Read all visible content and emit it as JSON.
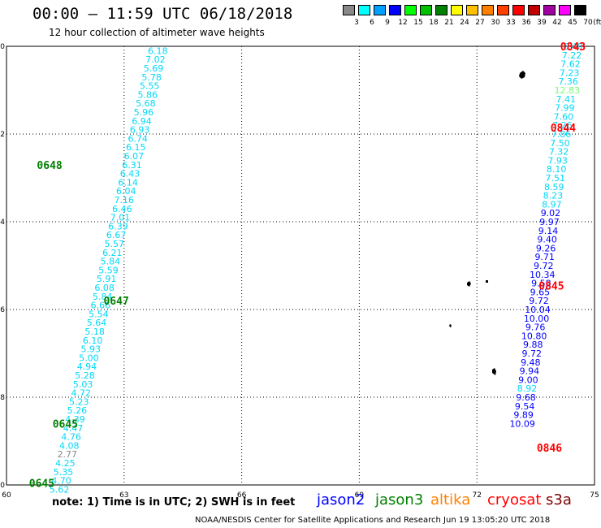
{
  "header": {
    "title": "00:00 — 11:59 UTC 06/18/2018",
    "subtitle": "12 hour collection of altimeter wave heights"
  },
  "color_scale": {
    "unit_label": "(ft)",
    "labels": [
      "3",
      "6",
      "9",
      "12",
      "15",
      "18",
      "21",
      "24",
      "27",
      "30",
      "33",
      "36",
      "39",
      "42",
      "45",
      "70"
    ],
    "colors": [
      "#888888",
      "#00ffff",
      "#00a0ff",
      "#0000ff",
      "#00ff00",
      "#00c000",
      "#008000",
      "#ffff00",
      "#ffc000",
      "#ff8000",
      "#ff4000",
      "#ff0000",
      "#c00000",
      "#a000a0",
      "#ff00ff",
      "#000000"
    ]
  },
  "note": "note: 1) Time is in UTC; 2) SWH is in feet",
  "satellites": [
    {
      "name": "jason2",
      "color": "#0000ff"
    },
    {
      "name": "jason3",
      "color": "#008000"
    },
    {
      "name": "altika",
      "color": "#ff8000"
    },
    {
      "name": "cryosat",
      "color": "#ff0000"
    },
    {
      "name": "s3a",
      "color": "#800000"
    }
  ],
  "footer": "NOAA/NESDIS Center for Satellite Applications and Research   Jun 19 13:05:20 UTC 2018",
  "chart_data": {
    "type": "scatter",
    "xlabel": "",
    "ylabel": "",
    "xlim": [
      60,
      75
    ],
    "ylim": [
      -10,
      0
    ],
    "xticks": [
      60,
      63,
      66,
      69,
      72,
      75
    ],
    "yticks": [
      0,
      -2,
      -4,
      -6,
      -8,
      -10
    ],
    "grid": true,
    "time_labels": [
      {
        "text": "0648",
        "x": 61.1,
        "y": -2.7,
        "color": "#008000"
      },
      {
        "text": "0647",
        "x": 62.8,
        "y": -5.8,
        "color": "#008000"
      },
      {
        "text": "0645",
        "x": 61.5,
        "y": -8.6,
        "color": "#008000"
      },
      {
        "text": "0645",
        "x": 60.9,
        "y": -9.95,
        "color": "#008000"
      },
      {
        "text": "0843",
        "x": 74.45,
        "y": 0.0,
        "color": "#ff0000"
      },
      {
        "text": "0844",
        "x": 74.2,
        "y": -1.85,
        "color": "#ff0000"
      },
      {
        "text": "0845",
        "x": 73.9,
        "y": -5.45,
        "color": "#ff0000"
      },
      {
        "text": "0846",
        "x": 73.85,
        "y": -9.15,
        "color": "#ff0000"
      }
    ],
    "series": [
      {
        "name": "jason3",
        "points": [
          {
            "x": 63.86,
            "y": -0.1,
            "v": "6.18",
            "c": "#00d8f8"
          },
          {
            "x": 63.8,
            "y": -0.3,
            "v": "7.02",
            "c": "#00d8f8"
          },
          {
            "x": 63.75,
            "y": -0.5,
            "v": "5.69",
            "c": "#00d8f8"
          },
          {
            "x": 63.7,
            "y": -0.7,
            "v": "5.78",
            "c": "#00d8f8"
          },
          {
            "x": 63.65,
            "y": -0.9,
            "v": "5.55",
            "c": "#00d8f8"
          },
          {
            "x": 63.6,
            "y": -1.1,
            "v": "5.86",
            "c": "#00d8f8"
          },
          {
            "x": 63.55,
            "y": -1.3,
            "v": "5.68",
            "c": "#00d8f8"
          },
          {
            "x": 63.5,
            "y": -1.5,
            "v": "5.96",
            "c": "#00d8f8"
          },
          {
            "x": 63.45,
            "y": -1.7,
            "v": "6.94",
            "c": "#00d8f8"
          },
          {
            "x": 63.4,
            "y": -1.9,
            "v": "6.93",
            "c": "#00d8f8"
          },
          {
            "x": 63.35,
            "y": -2.1,
            "v": "6.74",
            "c": "#00d8f8"
          },
          {
            "x": 63.3,
            "y": -2.3,
            "v": "6.15",
            "c": "#00d8f8"
          },
          {
            "x": 63.25,
            "y": -2.5,
            "v": "6.07",
            "c": "#00d8f8"
          },
          {
            "x": 63.2,
            "y": -2.7,
            "v": "6.31",
            "c": "#00d8f8"
          },
          {
            "x": 63.15,
            "y": -2.9,
            "v": "6.43",
            "c": "#00d8f8"
          },
          {
            "x": 63.1,
            "y": -3.1,
            "v": "6.14",
            "c": "#00d8f8"
          },
          {
            "x": 63.05,
            "y": -3.3,
            "v": "6.04",
            "c": "#00d8f8"
          },
          {
            "x": 63.0,
            "y": -3.5,
            "v": "7.16",
            "c": "#00d8f8"
          },
          {
            "x": 62.95,
            "y": -3.7,
            "v": "6.46",
            "c": "#00d8f8"
          },
          {
            "x": 62.9,
            "y": -3.9,
            "v": "7.01",
            "c": "#00d8f8"
          },
          {
            "x": 62.85,
            "y": -4.1,
            "v": "6.39",
            "c": "#00d8f8"
          },
          {
            "x": 62.8,
            "y": -4.3,
            "v": "6.67",
            "c": "#00d8f8"
          },
          {
            "x": 62.75,
            "y": -4.5,
            "v": "5.57",
            "c": "#00d8f8"
          },
          {
            "x": 62.7,
            "y": -4.7,
            "v": "6.21",
            "c": "#00d8f8"
          },
          {
            "x": 62.65,
            "y": -4.9,
            "v": "5.84",
            "c": "#00d8f8"
          },
          {
            "x": 62.6,
            "y": -5.1,
            "v": "5.59",
            "c": "#00d8f8"
          },
          {
            "x": 62.55,
            "y": -5.3,
            "v": "5.91",
            "c": "#00d8f8"
          },
          {
            "x": 62.5,
            "y": -5.5,
            "v": "6.08",
            "c": "#00d8f8"
          },
          {
            "x": 62.45,
            "y": -5.7,
            "v": "5.84",
            "c": "#00d8f8"
          },
          {
            "x": 62.4,
            "y": -5.9,
            "v": "6.66",
            "c": "#00d8f8"
          },
          {
            "x": 62.35,
            "y": -6.1,
            "v": "5.54",
            "c": "#00d8f8"
          },
          {
            "x": 62.3,
            "y": -6.3,
            "v": "5.64",
            "c": "#00d8f8"
          },
          {
            "x": 62.25,
            "y": -6.5,
            "v": "5.18",
            "c": "#00d8f8"
          },
          {
            "x": 62.2,
            "y": -6.7,
            "v": "6.10",
            "c": "#00d8f8"
          },
          {
            "x": 62.15,
            "y": -6.9,
            "v": "5.93",
            "c": "#00d8f8"
          },
          {
            "x": 62.1,
            "y": -7.1,
            "v": "5.00",
            "c": "#00d8f8"
          },
          {
            "x": 62.05,
            "y": -7.3,
            "v": "4.94",
            "c": "#00d8f8"
          },
          {
            "x": 62.0,
            "y": -7.5,
            "v": "5.28",
            "c": "#00d8f8"
          },
          {
            "x": 61.95,
            "y": -7.7,
            "v": "5.03",
            "c": "#00d8f8"
          },
          {
            "x": 61.9,
            "y": -7.9,
            "v": "4.72",
            "c": "#00d8f8"
          },
          {
            "x": 61.85,
            "y": -8.1,
            "v": "5.23",
            "c": "#00d8f8"
          },
          {
            "x": 61.8,
            "y": -8.3,
            "v": "5.26",
            "c": "#00d8f8"
          },
          {
            "x": 61.75,
            "y": -8.5,
            "v": "4.39",
            "c": "#00d8f8"
          },
          {
            "x": 61.7,
            "y": -8.7,
            "v": "4.47",
            "c": "#00d8f8"
          },
          {
            "x": 61.65,
            "y": -8.9,
            "v": "4.76",
            "c": "#00d8f8"
          },
          {
            "x": 61.6,
            "y": -9.1,
            "v": "4.08",
            "c": "#00d8f8"
          },
          {
            "x": 61.55,
            "y": -9.3,
            "v": "2.77",
            "c": "#888888"
          },
          {
            "x": 61.5,
            "y": -9.5,
            "v": "4.25",
            "c": "#00d8f8"
          },
          {
            "x": 61.45,
            "y": -9.7,
            "v": "5.35",
            "c": "#00d8f8"
          },
          {
            "x": 61.4,
            "y": -9.9,
            "v": "4.70",
            "c": "#00d8f8"
          },
          {
            "x": 61.35,
            "y": -10.1,
            "v": "5.62",
            "c": "#00d8f8"
          }
        ]
      },
      {
        "name": "cryosat",
        "points": [
          {
            "x": 74.45,
            "y": 0.0,
            "v": "6.49",
            "c": "#00d8f8"
          },
          {
            "x": 74.42,
            "y": -0.2,
            "v": "7.22",
            "c": "#00d8f8"
          },
          {
            "x": 74.39,
            "y": -0.4,
            "v": "7.62",
            "c": "#00d8f8"
          },
          {
            "x": 74.36,
            "y": -0.6,
            "v": "7.23",
            "c": "#00d8f8"
          },
          {
            "x": 74.33,
            "y": -0.8,
            "v": "7.36",
            "c": "#00d8f8"
          },
          {
            "x": 74.3,
            "y": -1.0,
            "v": "12.83",
            "c": "#70ff70"
          },
          {
            "x": 74.27,
            "y": -1.2,
            "v": "7.41",
            "c": "#00d8f8"
          },
          {
            "x": 74.24,
            "y": -1.4,
            "v": "7.99",
            "c": "#00d8f8"
          },
          {
            "x": 74.21,
            "y": -1.6,
            "v": "7.60",
            "c": "#00d8f8"
          },
          {
            "x": 74.18,
            "y": -1.8,
            "v": "7.26",
            "c": "#00d8f8"
          },
          {
            "x": 74.15,
            "y": -2.0,
            "v": "7.86",
            "c": "#00d8f8"
          },
          {
            "x": 74.12,
            "y": -2.2,
            "v": "7.50",
            "c": "#00d8f8"
          },
          {
            "x": 74.09,
            "y": -2.4,
            "v": "7.32",
            "c": "#00d8f8"
          },
          {
            "x": 74.06,
            "y": -2.6,
            "v": "7.93",
            "c": "#00d8f8"
          },
          {
            "x": 74.03,
            "y": -2.8,
            "v": "8.10",
            "c": "#00d8f8"
          },
          {
            "x": 74.0,
            "y": -3.0,
            "v": "7.51",
            "c": "#00d8f8"
          },
          {
            "x": 73.97,
            "y": -3.2,
            "v": "8.59",
            "c": "#00d8f8"
          },
          {
            "x": 73.94,
            "y": -3.4,
            "v": "8.23",
            "c": "#00d8f8"
          },
          {
            "x": 73.91,
            "y": -3.6,
            "v": "8.97",
            "c": "#00d8f8"
          },
          {
            "x": 73.88,
            "y": -3.8,
            "v": "9.02",
            "c": "#0000ff"
          },
          {
            "x": 73.85,
            "y": -4.0,
            "v": "9.97",
            "c": "#0000ff"
          },
          {
            "x": 73.82,
            "y": -4.2,
            "v": "9.14",
            "c": "#0000ff"
          },
          {
            "x": 73.79,
            "y": -4.4,
            "v": "9.40",
            "c": "#0000ff"
          },
          {
            "x": 73.76,
            "y": -4.6,
            "v": "9.26",
            "c": "#0000ff"
          },
          {
            "x": 73.73,
            "y": -4.8,
            "v": "9.71",
            "c": "#0000ff"
          },
          {
            "x": 73.7,
            "y": -5.0,
            "v": "9.72",
            "c": "#0000ff"
          },
          {
            "x": 73.67,
            "y": -5.2,
            "v": "10.34",
            "c": "#0000ff"
          },
          {
            "x": 73.64,
            "y": -5.4,
            "v": "9.58",
            "c": "#0000ff"
          },
          {
            "x": 73.61,
            "y": -5.6,
            "v": "9.65",
            "c": "#0000ff"
          },
          {
            "x": 73.58,
            "y": -5.8,
            "v": "9.72",
            "c": "#0000ff"
          },
          {
            "x": 73.55,
            "y": -6.0,
            "v": "10.04",
            "c": "#0000ff"
          },
          {
            "x": 73.52,
            "y": -6.2,
            "v": "10.00",
            "c": "#0000ff"
          },
          {
            "x": 73.49,
            "y": -6.4,
            "v": "9.76",
            "c": "#0000ff"
          },
          {
            "x": 73.46,
            "y": -6.6,
            "v": "10.80",
            "c": "#0000ff"
          },
          {
            "x": 73.43,
            "y": -6.8,
            "v": "9.88",
            "c": "#0000ff"
          },
          {
            "x": 73.4,
            "y": -7.0,
            "v": "9.72",
            "c": "#0000ff"
          },
          {
            "x": 73.37,
            "y": -7.2,
            "v": "9.48",
            "c": "#0000ff"
          },
          {
            "x": 73.34,
            "y": -7.4,
            "v": "9.94",
            "c": "#0000ff"
          },
          {
            "x": 73.31,
            "y": -7.6,
            "v": "9.00",
            "c": "#0000ff"
          },
          {
            "x": 73.28,
            "y": -7.8,
            "v": "8.92",
            "c": "#00d8f8"
          },
          {
            "x": 73.25,
            "y": -8.0,
            "v": "9.68",
            "c": "#0000ff"
          },
          {
            "x": 73.22,
            "y": -8.2,
            "v": "9.54",
            "c": "#0000ff"
          },
          {
            "x": 73.19,
            "y": -8.4,
            "v": "9.89",
            "c": "#0000ff"
          },
          {
            "x": 73.16,
            "y": -8.6,
            "v": "10.09",
            "c": "#0000ff"
          }
        ]
      }
    ]
  }
}
